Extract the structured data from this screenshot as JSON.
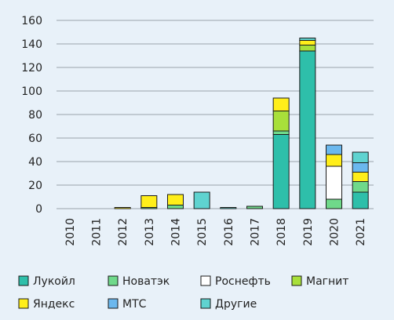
{
  "chart_data": {
    "type": "bar",
    "stacked": true,
    "title": "",
    "xlabel": "",
    "ylabel": "",
    "ylim": [
      0,
      160
    ],
    "yticks": [
      0,
      20,
      40,
      60,
      80,
      100,
      120,
      140,
      160
    ],
    "grid": true,
    "legend_position": "bottom",
    "categories": [
      "2010",
      "2011",
      "2012",
      "2013",
      "2014",
      "2015",
      "2016",
      "2017",
      "2018",
      "2019",
      "2020",
      "2021"
    ],
    "series": [
      {
        "name": "Лукойл",
        "color": "#2ebfaa",
        "values": [
          0,
          0,
          0,
          0,
          0,
          0,
          0,
          0,
          63,
          134,
          0,
          14
        ]
      },
      {
        "name": "Новатэк",
        "color": "#6fd98a",
        "values": [
          0,
          0,
          0,
          1,
          3,
          0,
          0,
          2,
          3,
          0,
          8,
          9
        ]
      },
      {
        "name": "Роснефть",
        "color": "#ffffff",
        "values": [
          0,
          0,
          0,
          0,
          0,
          0,
          0,
          0,
          0,
          0,
          28,
          0
        ]
      },
      {
        "name": "Магнит",
        "color": "#a8e03a",
        "values": [
          0,
          0,
          0,
          0,
          0,
          0,
          0,
          0,
          17,
          5,
          0,
          0
        ]
      },
      {
        "name": "Яндекс",
        "color": "#ffee1a",
        "values": [
          0,
          0,
          1,
          10,
          9,
          0,
          0,
          0,
          11,
          4,
          10,
          8
        ]
      },
      {
        "name": "МТС",
        "color": "#6bb8ee",
        "values": [
          0,
          0,
          0,
          0,
          0,
          0,
          0,
          0,
          0,
          0,
          8,
          8
        ]
      },
      {
        "name": "Другие",
        "color": "#5fd3d0",
        "values": [
          0,
          0,
          0,
          0,
          0,
          14,
          1,
          0,
          0,
          2,
          0,
          9
        ]
      }
    ]
  }
}
